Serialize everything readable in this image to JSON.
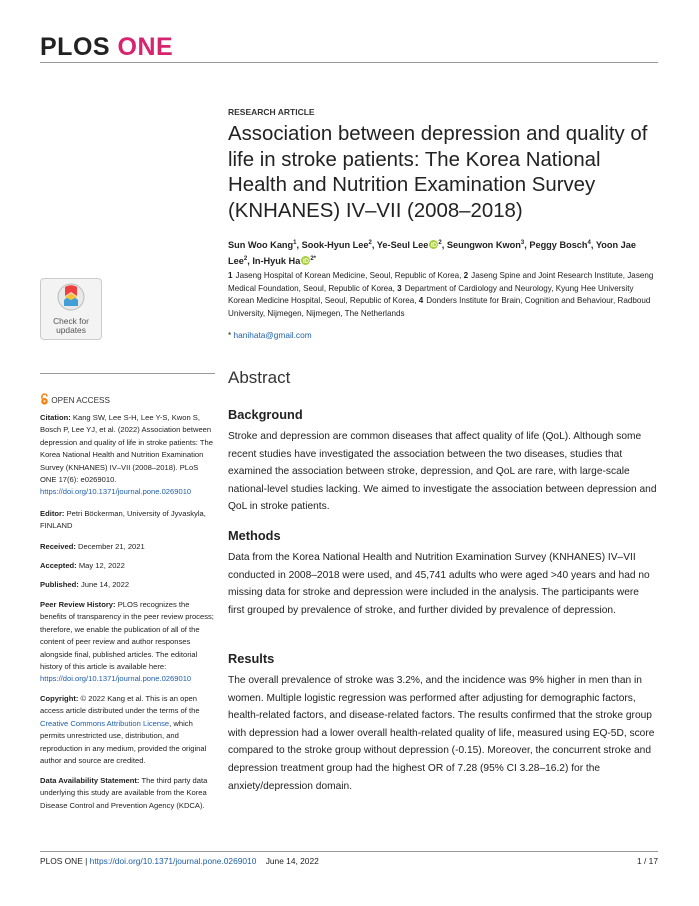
{
  "header": {
    "journal_left": "PLOS",
    "journal_right": "ONE"
  },
  "article": {
    "type": "RESEARCH ARTICLE",
    "title": "Association between depression and quality of life in stroke patients: The Korea National Health and Nutrition Examination Survey (KNHANES) IV–VII (2008–2018)",
    "authors": [
      {
        "name": "Sun Woo Kang",
        "sup": "1"
      },
      {
        "name": "Sook-Hyun Lee",
        "sup": "2"
      },
      {
        "name": "Ye-Seul Lee",
        "sup": "2",
        "orcid": true
      },
      {
        "name": "Seungwon Kwon",
        "sup": "3"
      },
      {
        "name": "Peggy Bosch",
        "sup": "4"
      },
      {
        "name": "Yoon Jae Lee",
        "sup": "2"
      },
      {
        "name": "In-Hyuk Ha",
        "sup": "2*",
        "orcid": true
      }
    ],
    "author_separator": ",",
    "affiliations": [
      {
        "num": "1",
        "text": "Jaseng Hospital of Korean Medicine, Seoul, Republic of Korea,"
      },
      {
        "num": "2",
        "text": "Jaseng Spine and Joint Research Institute, Jaseng Medical Foundation, Seoul, Republic of Korea,"
      },
      {
        "num": "3",
        "text": "Department of Cardiology and Neurology, Kyung Hee University Korean Medicine Hospital, Seoul, Republic of Korea,"
      },
      {
        "num": "4",
        "text": "Donders Institute for Brain, Cognition and Behaviour, Radboud University, Nijmegen, Nijmegen, The Netherlands"
      }
    ],
    "correspondence": {
      "marker": "*",
      "email": "hanihata@gmail.com"
    }
  },
  "sidebar": {
    "check_updates": "Check for updates",
    "open_access": "OPEN ACCESS",
    "citation": {
      "label": "Citation:",
      "text": "Kang SW, Lee S-H, Lee Y-S, Kwon S, Bosch P, Lee YJ, et al. (2022) Association between depression and quality of life in stroke patients: The Korea National Health and Nutrition Examination Survey (KNHANES) IV–VII (2008–2018). PLoS ONE 17(6): e0269010.",
      "link": "https://doi.org/10.1371/journal.pone.0269010"
    },
    "editor": {
      "label": "Editor:",
      "text": "Petri Böckerman, University of Jyvaskyla, FINLAND"
    },
    "received": {
      "label": "Received:",
      "text": "December 21, 2021"
    },
    "accepted": {
      "label": "Accepted:",
      "text": "May 12, 2022"
    },
    "published": {
      "label": "Published:",
      "text": "June 14, 2022"
    },
    "peer_review": {
      "label": "Peer Review History:",
      "text": "PLOS recognizes the benefits of transparency in the peer review process; therefore, we enable the publication of all of the content of peer review and author responses alongside final, published articles. The editorial history of this article is available here:",
      "link": "https://doi.org/10.1371/journal.pone.0269010"
    },
    "copyright": {
      "label": "Copyright:",
      "text_before": "© 2022 Kang et al. This is an open access article distributed under the terms of the",
      "link": "Creative Commons Attribution License",
      "text_after": ", which permits unrestricted use, distribution, and reproduction in any medium, provided the original author and source are credited."
    },
    "data_availability": {
      "label": "Data Availability Statement:",
      "text": "The third party data underlying this study are available from the Korea Disease Control and Prevention Agency (KDCA)."
    }
  },
  "abstract": {
    "heading": "Abstract",
    "sections": [
      {
        "heading": "Background",
        "text": "Stroke and depression are common diseases that affect quality of life (QoL). Although some recent studies have investigated the association between the two diseases, studies that examined the association between stroke, depression, and QoL are rare, with large-scale national-level studies lacking. We aimed to investigate the association between depression and QoL in stroke patients."
      },
      {
        "heading": "Methods",
        "text": "Data from the Korea National Health and Nutrition Examination Survey (KNHANES) IV–VII conducted in 2008–2018 were used, and 45,741 adults who were aged >40 years and had no missing data for stroke and depression were included in the analysis. The participants were first grouped by prevalence of stroke, and further divided by prevalence of depression."
      },
      {
        "heading": "Results",
        "text": "The overall prevalence of stroke was 3.2%, and the incidence was 9% higher in men than in women. Multiple logistic regression was performed after adjusting for demographic factors, health-related factors, and disease-related factors. The results confirmed that the stroke group with depression had a lower overall health-related quality of life, measured using EQ-5D, score compared to the stroke group without depression (-0.15). Moreover, the concurrent stroke and depression treatment group had the highest OR of 7.28 (95% CI 3.28–16.2) for the anxiety/depression domain."
      }
    ]
  },
  "footer": {
    "journal": "PLOS ONE",
    "separator": "|",
    "doi": "https://doi.org/10.1371/journal.pone.0269010",
    "date": "June 14, 2022",
    "page": "1 / 17"
  }
}
